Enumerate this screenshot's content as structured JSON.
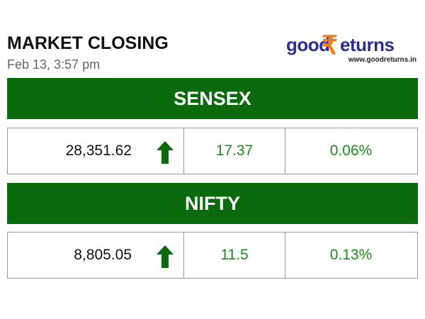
{
  "header": {
    "title": "MARKET CLOSING",
    "timestamp": "Feb 13, 3:57 pm"
  },
  "logo": {
    "prefix": "good",
    "symbol": "₹",
    "suffix": "eturns",
    "url": "www.goodreturns.in"
  },
  "indices": [
    {
      "name": "SENSEX",
      "value": "28,351.62",
      "change": "17.37",
      "percent": "0.06%"
    },
    {
      "name": "NIFTY",
      "value": "8,805.05",
      "change": "11.5",
      "percent": "0.13%"
    }
  ]
}
